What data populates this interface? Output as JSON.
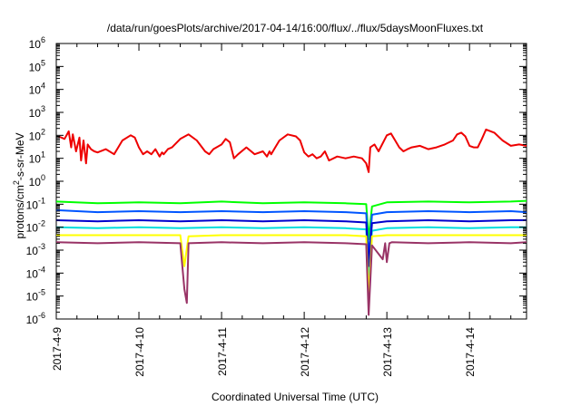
{
  "chart_data": {
    "type": "line",
    "title": "/data/run/goesPlots/archive/2017-04-14/16:00/flux/../flux/5daysMoonFluxes.txt",
    "xlabel": "Coordinated Universal Time (UTC)",
    "ylabel": "protons/cm²-s-sr-MeV",
    "yscale": "log",
    "ylim": [
      1e-06,
      1000000
    ],
    "xlim": [
      0,
      5.69
    ],
    "x_tick_labels": [
      "2017-4-9",
      "2017-4-10",
      "2017-4-11",
      "2017-4-12",
      "2017-4-13",
      "2017-4-14"
    ],
    "y_tick_labels": [
      {
        "base": "10",
        "exp": "-6"
      },
      {
        "base": "10",
        "exp": "-5"
      },
      {
        "base": "10",
        "exp": "-4"
      },
      {
        "base": "10",
        "exp": "-3"
      },
      {
        "base": "10",
        "exp": "-2"
      },
      {
        "base": "10",
        "exp": "-1"
      },
      {
        "base": "10",
        "exp": "0"
      },
      {
        "base": "10",
        "exp": "1"
      },
      {
        "base": "10",
        "exp": "2"
      },
      {
        "base": "10",
        "exp": "3"
      },
      {
        "base": "10",
        "exp": "4"
      },
      {
        "base": "10",
        "exp": "5"
      },
      {
        "base": "10",
        "exp": "6"
      }
    ],
    "grid": false,
    "legend": "none",
    "series": [
      {
        "color": "#ee0000",
        "x": [
          0.03,
          0.1,
          0.15,
          0.18,
          0.2,
          0.24,
          0.28,
          0.3,
          0.33,
          0.36,
          0.38,
          0.42,
          0.46,
          0.5,
          0.6,
          0.7,
          0.8,
          0.9,
          0.95,
          1.0,
          1.05,
          1.1,
          1.15,
          1.2,
          1.25,
          1.28,
          1.3,
          1.35,
          1.4,
          1.5,
          1.6,
          1.7,
          1.8,
          1.85,
          1.9,
          2.0,
          2.05,
          2.1,
          2.15,
          2.2,
          2.3,
          2.4,
          2.5,
          2.55,
          2.58,
          2.6,
          2.65,
          2.7,
          2.8,
          2.9,
          2.95,
          3.0,
          3.05,
          3.1,
          3.15,
          3.2,
          3.25,
          3.3,
          3.4,
          3.5,
          3.6,
          3.7,
          3.75,
          3.78,
          3.8,
          3.85,
          3.9,
          4.0,
          4.05,
          4.1,
          4.15,
          4.2,
          4.25,
          4.3,
          4.4,
          4.5,
          4.6,
          4.7,
          4.8,
          4.85,
          4.9,
          4.95,
          5.0,
          5.05,
          5.1,
          5.15,
          5.2,
          5.3,
          5.4,
          5.5,
          5.6,
          5.69
        ],
        "y": [
          90,
          70,
          150,
          30,
          110,
          20,
          80,
          8,
          60,
          6,
          40,
          25,
          20,
          18,
          25,
          15,
          60,
          100,
          80,
          30,
          15,
          20,
          15,
          25,
          12,
          18,
          15,
          25,
          30,
          70,
          110,
          60,
          20,
          15,
          25,
          40,
          70,
          50,
          10,
          15,
          30,
          15,
          20,
          12,
          20,
          15,
          30,
          60,
          110,
          90,
          60,
          18,
          12,
          15,
          10,
          12,
          20,
          8,
          12,
          10,
          12,
          10,
          6,
          2.5,
          30,
          40,
          20,
          100,
          120,
          60,
          30,
          20,
          25,
          30,
          35,
          25,
          30,
          40,
          60,
          110,
          130,
          90,
          35,
          30,
          30,
          70,
          180,
          130,
          60,
          35,
          40,
          35
        ]
      },
      {
        "color": "#00ff00",
        "x": [
          0.0,
          0.5,
          1.0,
          1.5,
          2.0,
          2.5,
          3.0,
          3.5,
          3.75,
          3.78,
          3.82,
          4.0,
          4.5,
          5.0,
          5.5,
          5.69
        ],
        "y": [
          0.13,
          0.11,
          0.12,
          0.11,
          0.13,
          0.11,
          0.12,
          0.11,
          0.1,
          0.003,
          0.08,
          0.12,
          0.13,
          0.12,
          0.13,
          0.14
        ]
      },
      {
        "color": "#0055ff",
        "x": [
          0.0,
          0.5,
          1.0,
          1.5,
          2.0,
          2.5,
          3.0,
          3.5,
          3.75,
          3.78,
          3.82,
          4.0,
          4.5,
          5.0,
          5.5,
          5.69
        ],
        "y": [
          0.055,
          0.045,
          0.05,
          0.045,
          0.05,
          0.045,
          0.05,
          0.045,
          0.04,
          0.0005,
          0.035,
          0.045,
          0.05,
          0.045,
          0.05,
          0.045
        ]
      },
      {
        "color": "#00dddd",
        "x": [
          0.0,
          0.5,
          1.0,
          1.5,
          2.0,
          2.5,
          3.0,
          3.5,
          3.75,
          3.78,
          3.82,
          4.0,
          4.5,
          5.0,
          5.5,
          5.69
        ],
        "y": [
          0.01,
          0.009,
          0.01,
          0.009,
          0.01,
          0.009,
          0.01,
          0.009,
          0.008,
          5e-05,
          0.007,
          0.009,
          0.01,
          0.009,
          0.01,
          0.01
        ]
      },
      {
        "color": "#0000cc",
        "x": [
          0.0,
          0.5,
          1.0,
          1.5,
          2.0,
          2.5,
          3.0,
          3.5,
          3.75,
          3.78,
          3.82,
          4.0,
          4.5,
          5.0,
          5.5,
          5.69
        ],
        "y": [
          0.02,
          0.018,
          0.02,
          0.018,
          0.02,
          0.018,
          0.02,
          0.018,
          0.016,
          0.0002,
          0.015,
          0.018,
          0.02,
          0.018,
          0.02,
          0.02
        ]
      },
      {
        "color": "#ffff00",
        "x": [
          0.0,
          0.5,
          1.0,
          1.5,
          1.55,
          1.6,
          2.0,
          2.5,
          3.0,
          3.5,
          3.75,
          3.78,
          3.82,
          4.0,
          4.5,
          5.0,
          5.5,
          5.69
        ],
        "y": [
          0.0045,
          0.0045,
          0.0045,
          0.0045,
          0.0002,
          0.004,
          0.0045,
          0.0045,
          0.0045,
          0.0045,
          0.004,
          1e-05,
          0.004,
          0.0045,
          0.0045,
          0.0045,
          0.0045,
          0.0045
        ]
      },
      {
        "color": "#993366",
        "x": [
          0.0,
          0.5,
          1.0,
          1.5,
          1.55,
          1.58,
          1.6,
          2.0,
          2.5,
          3.0,
          3.5,
          3.75,
          3.78,
          3.82,
          3.95,
          3.98,
          4.0,
          4.03,
          4.06,
          4.5,
          5.0,
          5.5,
          5.69
        ],
        "y": [
          0.0022,
          0.002,
          0.0022,
          0.002,
          2e-05,
          5e-06,
          0.002,
          0.0022,
          0.002,
          0.0022,
          0.002,
          0.0018,
          1.5e-06,
          0.0016,
          0.0004,
          0.002,
          0.0003,
          0.002,
          0.0022,
          0.002,
          0.0022,
          0.002,
          0.0022
        ]
      }
    ]
  }
}
